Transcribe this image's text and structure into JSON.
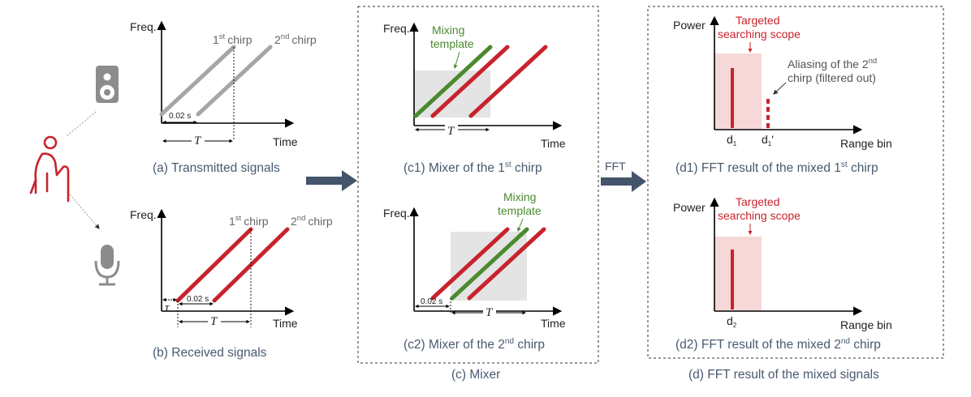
{
  "colors": {
    "transmit": "#a6a6a6",
    "receive": "#c8232c",
    "template": "#4b8a2e",
    "arrow": "#44546a",
    "scope_fill": "#f6d8d8",
    "mix_fill": "#e4e4e4",
    "caption": "#4a5a70",
    "highlight": "#c8232c",
    "note": "#555555"
  },
  "icons": [
    "speaker-icon",
    "elderly-person-icon",
    "microphone-icon"
  ],
  "axes": {
    "freq": "Freq.",
    "time": "Time",
    "power": "Power",
    "range_bin": "Range bin"
  },
  "chirps": {
    "first": {
      "base": "1",
      "sup": "st",
      "word": "chirp"
    },
    "second": {
      "base": "2",
      "sup": "nd",
      "word": "chirp"
    }
  },
  "intervals": {
    "delay": "0.02 s",
    "period": "T",
    "tau": "τ"
  },
  "mixing_template": [
    "Mixing",
    "template"
  ],
  "panel_a": {
    "caption": "(a) Transmitted signals"
  },
  "panel_b": {
    "caption": "(b) Received signals"
  },
  "panel_c1": {
    "caption_pre": "(c1) Mixer of the 1",
    "caption_sup": "st",
    "caption_post": " chirp"
  },
  "panel_c2": {
    "caption_pre": "(c2) Mixer of the 2",
    "caption_sup": "nd",
    "caption_post": " chirp"
  },
  "panel_c": {
    "caption": "(c) Mixer"
  },
  "fft_label": "FFT",
  "scope": [
    "Targeted",
    "searching scope"
  ],
  "aliasing": {
    "line1_pre": "Aliasing of the 2",
    "line1_sup": "nd",
    "line2": "chirp (filtered out)"
  },
  "bins": {
    "d1_base": "d",
    "d1_sub": "1",
    "d1p_base": "d",
    "d1p_sub": "1",
    "d1p_prime": "'",
    "d2_base": "d",
    "d2_sub": "2"
  },
  "panel_d1": {
    "caption_pre": "(d1) FFT result of the mixed 1",
    "caption_sup": "st",
    "caption_post": " chirp"
  },
  "panel_d2": {
    "caption_pre": "(d2) FFT result of the mixed 2",
    "caption_sup": "nd",
    "caption_post": " chirp"
  },
  "panel_d": {
    "caption": "(d) FFT result of the mixed signals"
  }
}
